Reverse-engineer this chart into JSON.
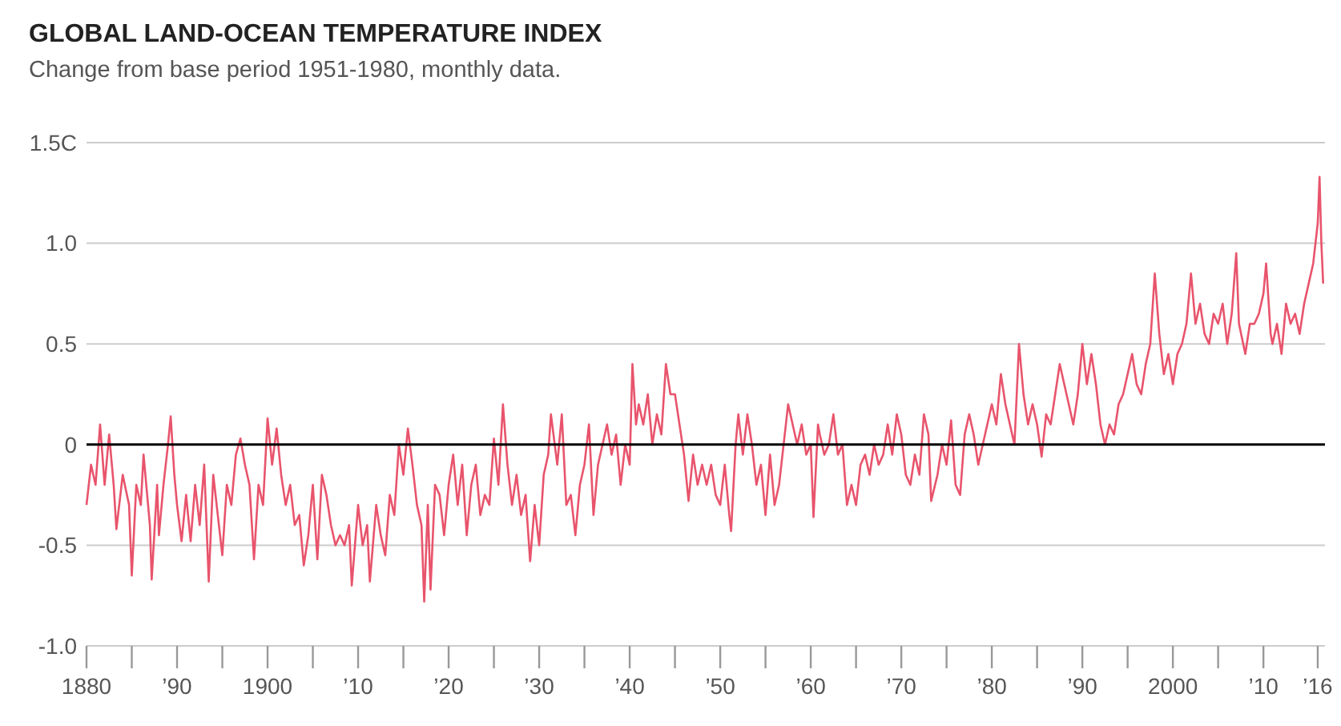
{
  "chart_data": {
    "type": "line",
    "title": "GLOBAL LAND-OCEAN TEMPERATURE INDEX",
    "subtitle": "Change from base period 1951-1980, monthly data.",
    "xlim": [
      1880,
      2016.8
    ],
    "ylim": [
      -1.0,
      1.5
    ],
    "xticks": [
      {
        "value": 1880,
        "label": "1880"
      },
      {
        "value": 1885,
        "label": null
      },
      {
        "value": 1890,
        "label": "’90"
      },
      {
        "value": 1895,
        "label": null
      },
      {
        "value": 1900,
        "label": "1900"
      },
      {
        "value": 1905,
        "label": null
      },
      {
        "value": 1910,
        "label": "’10"
      },
      {
        "value": 1915,
        "label": null
      },
      {
        "value": 1920,
        "label": "’20"
      },
      {
        "value": 1925,
        "label": null
      },
      {
        "value": 1930,
        "label": "’30"
      },
      {
        "value": 1935,
        "label": null
      },
      {
        "value": 1940,
        "label": "’40"
      },
      {
        "value": 1945,
        "label": null
      },
      {
        "value": 1950,
        "label": "’50"
      },
      {
        "value": 1955,
        "label": null
      },
      {
        "value": 1960,
        "label": "’60"
      },
      {
        "value": 1965,
        "label": null
      },
      {
        "value": 1970,
        "label": "’70"
      },
      {
        "value": 1975,
        "label": null
      },
      {
        "value": 1980,
        "label": "’80"
      },
      {
        "value": 1985,
        "label": null
      },
      {
        "value": 1990,
        "label": "’90"
      },
      {
        "value": 1995,
        "label": null
      },
      {
        "value": 2000,
        "label": "2000"
      },
      {
        "value": 2005,
        "label": null
      },
      {
        "value": 2010,
        "label": "’10"
      },
      {
        "value": 2016,
        "label": "’16"
      }
    ],
    "yticks": [
      {
        "value": 1.5,
        "label": "1.5C"
      },
      {
        "value": 1.0,
        "label": "1.0"
      },
      0.5,
      0,
      -0.5,
      {
        "value": -1.0,
        "label": "-1.0"
      }
    ],
    "grid": "y",
    "ref_lines": [
      {
        "axis": "y",
        "value": 0,
        "color": "#000000"
      }
    ],
    "series": [
      {
        "color": "#e8546c",
        "x": [
          1880,
          1880.5,
          1881,
          1881.5,
          1882,
          1882.5,
          1883,
          1883.3,
          1884,
          1884.7,
          1885,
          1885.5,
          1886,
          1886.3,
          1887,
          1887.2,
          1887.8,
          1888,
          1888.5,
          1889,
          1889.3,
          1889.7,
          1890,
          1890.5,
          1891,
          1891.5,
          1892,
          1892.5,
          1893,
          1893.5,
          1894,
          1894.5,
          1895,
          1895.5,
          1896,
          1896.5,
          1897,
          1897.5,
          1898,
          1898.5,
          1899,
          1899.5,
          1900,
          1900.5,
          1901,
          1901.5,
          1902,
          1902.5,
          1903,
          1903.5,
          1904,
          1904.5,
          1905,
          1905.5,
          1906,
          1906.5,
          1907,
          1907.5,
          1908,
          1908.5,
          1909,
          1909.3,
          1910,
          1910.5,
          1911,
          1911.3,
          1912,
          1912.5,
          1913,
          1913.5,
          1914,
          1914.5,
          1915,
          1915.5,
          1916,
          1916.5,
          1917,
          1917.3,
          1917.7,
          1918,
          1918.5,
          1919,
          1919.5,
          1920,
          1920.5,
          1921,
          1921.5,
          1922,
          1922.5,
          1923,
          1923.5,
          1924,
          1924.5,
          1925,
          1925.5,
          1926,
          1926.5,
          1927,
          1927.5,
          1928,
          1928.5,
          1929,
          1929.5,
          1930,
          1930.5,
          1931,
          1931.3,
          1932,
          1932.5,
          1933,
          1933.5,
          1934,
          1934.5,
          1935,
          1935.5,
          1936,
          1936.5,
          1937,
          1937.5,
          1938,
          1938.5,
          1939,
          1939.5,
          1940,
          1940.3,
          1940.7,
          1941,
          1941.5,
          1942,
          1942.5,
          1943,
          1943.5,
          1944,
          1944.5,
          1945,
          1945.5,
          1946,
          1946.5,
          1947,
          1947.5,
          1948,
          1948.5,
          1949,
          1949.5,
          1950,
          1950.5,
          1951,
          1951.2,
          1951.7,
          1952,
          1952.5,
          1953,
          1953.5,
          1954,
          1954.5,
          1955,
          1955.5,
          1956,
          1956.5,
          1957,
          1957.5,
          1958,
          1958.5,
          1959,
          1959.5,
          1960,
          1960.3,
          1960.8,
          1961,
          1961.5,
          1962,
          1962.5,
          1963,
          1963.5,
          1964,
          1964.5,
          1965,
          1965.5,
          1966,
          1966.5,
          1967,
          1967.5,
          1968,
          1968.5,
          1969,
          1969.5,
          1970,
          1970.5,
          1971,
          1971.5,
          1972,
          1972.5,
          1973,
          1973.3,
          1974,
          1974.5,
          1975,
          1975.5,
          1976,
          1976.5,
          1977,
          1977.5,
          1978,
          1978.5,
          1979,
          1979.5,
          1980,
          1980.5,
          1981,
          1981.5,
          1982,
          1982.5,
          1983,
          1983.5,
          1984,
          1984.5,
          1985,
          1985.5,
          1986,
          1986.5,
          1987,
          1987.5,
          1988,
          1988.5,
          1989,
          1989.5,
          1990,
          1990.5,
          1991,
          1991.5,
          1992,
          1992.5,
          1993,
          1993.5,
          1994,
          1994.5,
          1995,
          1995.5,
          1996,
          1996.5,
          1997,
          1997.5,
          1998,
          1998.5,
          1999,
          1999.5,
          2000,
          2000.5,
          2001,
          2001.5,
          2002,
          2002.5,
          2003,
          2003.5,
          2004,
          2004.5,
          2005,
          2005.5,
          2006,
          2006.5,
          2007,
          2007.3,
          2008,
          2008.5,
          2009,
          2009.5,
          2010,
          2010.3,
          2010.8,
          2011,
          2011.5,
          2012,
          2012.5,
          2013,
          2013.5,
          2014,
          2014.5,
          2015,
          2015.5,
          2016,
          2016.2,
          2016.4,
          2016.6
        ],
        "values": [
          -0.3,
          -0.1,
          -0.2,
          0.1,
          -0.2,
          0.05,
          -0.2,
          -0.42,
          -0.15,
          -0.3,
          -0.65,
          -0.2,
          -0.3,
          -0.05,
          -0.4,
          -0.67,
          -0.2,
          -0.45,
          -0.2,
          0.0,
          0.14,
          -0.15,
          -0.3,
          -0.48,
          -0.25,
          -0.48,
          -0.2,
          -0.4,
          -0.1,
          -0.68,
          -0.15,
          -0.35,
          -0.55,
          -0.2,
          -0.3,
          -0.05,
          0.03,
          -0.1,
          -0.2,
          -0.57,
          -0.2,
          -0.3,
          0.13,
          -0.1,
          0.08,
          -0.15,
          -0.3,
          -0.2,
          -0.4,
          -0.35,
          -0.6,
          -0.45,
          -0.2,
          -0.57,
          -0.15,
          -0.25,
          -0.4,
          -0.5,
          -0.45,
          -0.5,
          -0.4,
          -0.7,
          -0.3,
          -0.5,
          -0.4,
          -0.68,
          -0.3,
          -0.45,
          -0.55,
          -0.25,
          -0.35,
          0.0,
          -0.15,
          0.08,
          -0.1,
          -0.3,
          -0.4,
          -0.78,
          -0.3,
          -0.72,
          -0.2,
          -0.25,
          -0.45,
          -0.2,
          -0.05,
          -0.3,
          -0.1,
          -0.45,
          -0.2,
          -0.1,
          -0.35,
          -0.25,
          -0.3,
          0.03,
          -0.2,
          0.2,
          -0.1,
          -0.3,
          -0.15,
          -0.35,
          -0.25,
          -0.58,
          -0.3,
          -0.5,
          -0.15,
          -0.05,
          0.15,
          -0.1,
          0.15,
          -0.3,
          -0.25,
          -0.45,
          -0.2,
          -0.1,
          0.1,
          -0.35,
          -0.1,
          0.0,
          0.1,
          -0.05,
          0.05,
          -0.2,
          0.0,
          -0.1,
          0.4,
          0.1,
          0.2,
          0.1,
          0.25,
          0.0,
          0.15,
          0.05,
          0.4,
          0.25,
          0.25,
          0.1,
          -0.05,
          -0.28,
          -0.05,
          -0.2,
          -0.1,
          -0.2,
          -0.1,
          -0.25,
          -0.3,
          -0.1,
          -0.35,
          -0.43,
          0.0,
          0.15,
          -0.05,
          0.15,
          0.0,
          -0.2,
          -0.1,
          -0.35,
          -0.05,
          -0.3,
          -0.2,
          0.0,
          0.2,
          0.1,
          0.0,
          0.1,
          -0.05,
          0.0,
          -0.36,
          0.1,
          0.05,
          -0.05,
          0.0,
          0.15,
          -0.05,
          0.0,
          -0.3,
          -0.2,
          -0.3,
          -0.1,
          -0.05,
          -0.15,
          0.0,
          -0.1,
          -0.05,
          0.1,
          -0.05,
          0.15,
          0.05,
          -0.15,
          -0.2,
          -0.05,
          -0.15,
          0.15,
          0.05,
          -0.28,
          -0.15,
          0.0,
          -0.1,
          0.12,
          -0.2,
          -0.25,
          0.05,
          0.15,
          0.05,
          -0.1,
          0.0,
          0.1,
          0.2,
          0.1,
          0.35,
          0.2,
          0.1,
          0.0,
          0.5,
          0.25,
          0.1,
          0.2,
          0.1,
          -0.06,
          0.15,
          0.1,
          0.25,
          0.4,
          0.3,
          0.2,
          0.1,
          0.25,
          0.5,
          0.3,
          0.45,
          0.3,
          0.1,
          0.0,
          0.1,
          0.05,
          0.2,
          0.25,
          0.35,
          0.45,
          0.3,
          0.25,
          0.4,
          0.5,
          0.85,
          0.55,
          0.35,
          0.45,
          0.3,
          0.45,
          0.5,
          0.6,
          0.85,
          0.6,
          0.7,
          0.55,
          0.5,
          0.65,
          0.6,
          0.7,
          0.5,
          0.65,
          0.95,
          0.6,
          0.45,
          0.6,
          0.6,
          0.65,
          0.75,
          0.9,
          0.55,
          0.5,
          0.6,
          0.45,
          0.7,
          0.6,
          0.65,
          0.55,
          0.7,
          0.8,
          0.9,
          1.1,
          1.33,
          1.0,
          0.8
        ]
      }
    ]
  }
}
